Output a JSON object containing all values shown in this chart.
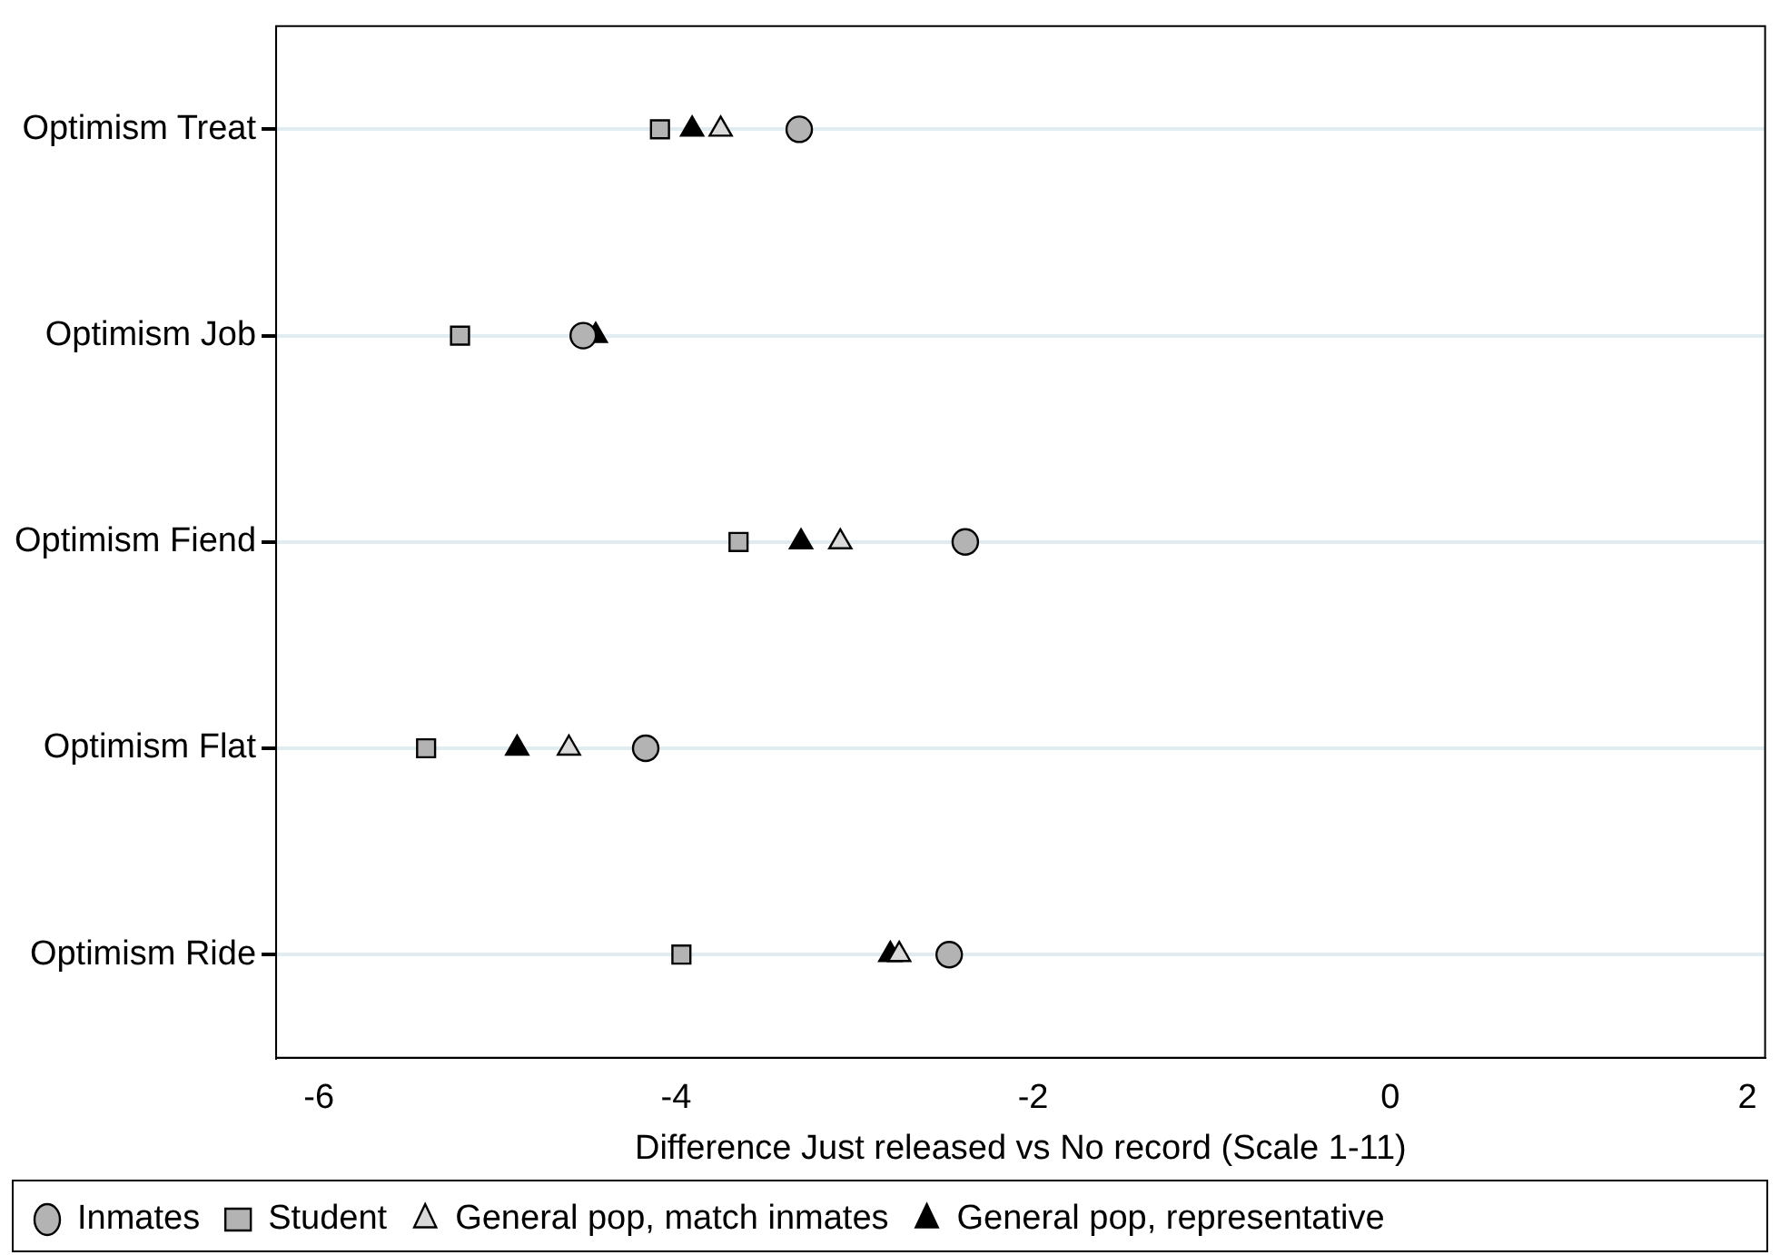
{
  "chart_data": {
    "type": "scatter",
    "xlabel": "Difference Just released vs No record (Scale 1-11)",
    "categories": [
      "Optimism Treat",
      "Optimism Job",
      "Optimism Fiend",
      "Optimism Flat",
      "Optimism Ride"
    ],
    "orientation": "horizontal",
    "xlim": [
      -6.24,
      2.1
    ],
    "xticks": [
      -6,
      -4,
      -2,
      0,
      2
    ],
    "grid": "y",
    "legend": "bottom",
    "series": [
      {
        "name": "Inmates",
        "color": "#b3b3b3",
        "marker": "circle",
        "values": [
          -3.31,
          -4.52,
          -2.38,
          -4.17,
          -2.47
        ]
      },
      {
        "name": "Student",
        "color": "#b3b3b3",
        "marker": "square",
        "values": [
          -4.09,
          -5.21,
          -3.65,
          -5.4,
          -3.97
        ]
      },
      {
        "name": "General pop, match inmates",
        "color": "#d9d9d9",
        "marker": "triangle",
        "values": [
          -3.75,
          null,
          -3.08,
          -4.6,
          -2.75
        ]
      },
      {
        "name": "General pop, representative",
        "color": "#000000",
        "marker": "triangle",
        "values": [
          -3.91,
          -4.45,
          -3.3,
          -4.89,
          -2.8
        ]
      }
    ]
  }
}
